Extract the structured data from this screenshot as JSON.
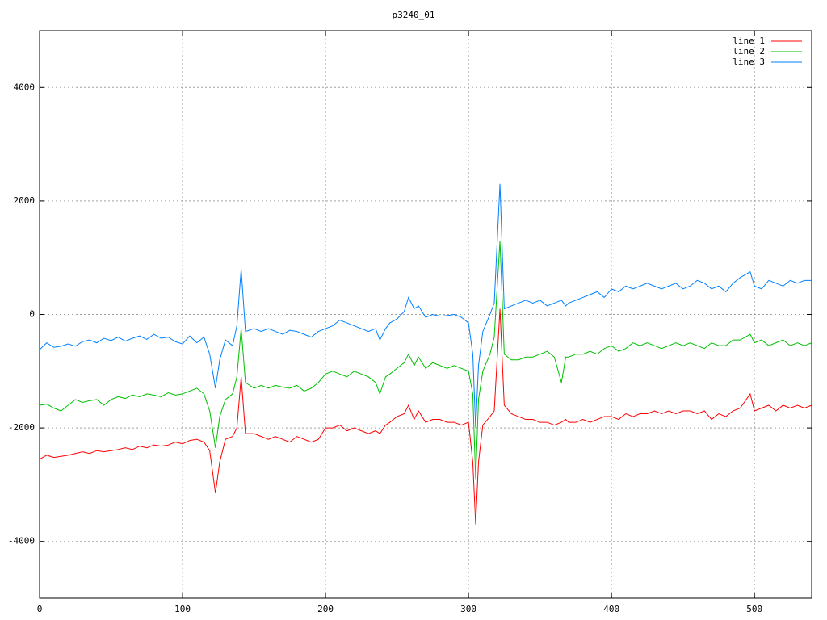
{
  "chart_data": {
    "type": "line",
    "title": "p3240_01",
    "x": [
      0,
      5,
      10,
      15,
      20,
      25,
      30,
      35,
      40,
      45,
      50,
      55,
      60,
      65,
      70,
      75,
      80,
      85,
      90,
      95,
      100,
      105,
      110,
      115,
      119,
      123,
      126,
      130,
      135,
      138,
      141,
      144,
      150,
      155,
      160,
      165,
      170,
      175,
      180,
      185,
      190,
      195,
      200,
      205,
      210,
      215,
      220,
      225,
      230,
      235,
      238,
      242,
      245,
      250,
      255,
      258,
      262,
      265,
      270,
      275,
      280,
      285,
      290,
      295,
      300,
      303,
      305,
      307,
      310,
      315,
      318,
      322,
      325,
      330,
      335,
      340,
      345,
      350,
      355,
      360,
      365,
      368,
      370,
      375,
      380,
      385,
      390,
      395,
      400,
      405,
      410,
      415,
      420,
      425,
      430,
      435,
      440,
      445,
      450,
      455,
      460,
      465,
      470,
      475,
      480,
      485,
      490,
      497,
      500,
      505,
      510,
      515,
      520,
      525,
      530,
      535,
      540
    ],
    "series": [
      {
        "name": "line 1",
        "color": "#ff0000",
        "values": [
          -2550,
          -2480,
          -2520,
          -2500,
          -2480,
          -2450,
          -2420,
          -2450,
          -2400,
          -2420,
          -2400,
          -2380,
          -2350,
          -2380,
          -2320,
          -2350,
          -2300,
          -2320,
          -2300,
          -2250,
          -2280,
          -2220,
          -2200,
          -2250,
          -2400,
          -3150,
          -2600,
          -2200,
          -2150,
          -2000,
          -1100,
          -2100,
          -2100,
          -2150,
          -2200,
          -2150,
          -2200,
          -2250,
          -2150,
          -2200,
          -2250,
          -2200,
          -2000,
          -2000,
          -1950,
          -2050,
          -2000,
          -2050,
          -2100,
          -2050,
          -2100,
          -1950,
          -1900,
          -1800,
          -1750,
          -1600,
          -1850,
          -1700,
          -1900,
          -1850,
          -1850,
          -1900,
          -1900,
          -1950,
          -1900,
          -2600,
          -3700,
          -2600,
          -1950,
          -1800,
          -1700,
          100,
          -1600,
          -1750,
          -1800,
          -1850,
          -1850,
          -1900,
          -1900,
          -1950,
          -1900,
          -1850,
          -1900,
          -1900,
          -1850,
          -1900,
          -1850,
          -1800,
          -1800,
          -1850,
          -1750,
          -1800,
          -1750,
          -1750,
          -1700,
          -1750,
          -1700,
          -1750,
          -1700,
          -1700,
          -1750,
          -1700,
          -1850,
          -1750,
          -1800,
          -1700,
          -1650,
          -1400,
          -1700,
          -1650,
          -1600,
          -1700,
          -1600,
          -1650,
          -1600,
          -1650,
          -1600
        ]
      },
      {
        "name": "line 2",
        "color": "#00c000",
        "values": [
          -1600,
          -1580,
          -1650,
          -1700,
          -1600,
          -1500,
          -1550,
          -1520,
          -1500,
          -1600,
          -1500,
          -1450,
          -1480,
          -1420,
          -1450,
          -1400,
          -1420,
          -1450,
          -1380,
          -1420,
          -1400,
          -1350,
          -1300,
          -1400,
          -1700,
          -2350,
          -1800,
          -1500,
          -1400,
          -1100,
          -250,
          -1200,
          -1300,
          -1250,
          -1300,
          -1250,
          -1280,
          -1300,
          -1250,
          -1350,
          -1300,
          -1200,
          -1050,
          -1000,
          -1050,
          -1100,
          -1000,
          -1050,
          -1100,
          -1200,
          -1400,
          -1100,
          -1050,
          -950,
          -850,
          -700,
          -900,
          -750,
          -950,
          -850,
          -900,
          -950,
          -900,
          -950,
          -1000,
          -1400,
          -2900,
          -1500,
          -1000,
          -700,
          -400,
          1300,
          -700,
          -800,
          -800,
          -750,
          -750,
          -700,
          -650,
          -750,
          -1200,
          -750,
          -750,
          -700,
          -700,
          -650,
          -700,
          -600,
          -550,
          -650,
          -600,
          -500,
          -550,
          -500,
          -550,
          -600,
          -550,
          -500,
          -550,
          -500,
          -550,
          -600,
          -500,
          -550,
          -550,
          -450,
          -450,
          -350,
          -500,
          -450,
          -550,
          -500,
          -450,
          -550,
          -500,
          -550,
          -500
        ]
      },
      {
        "name": "line 3",
        "color": "#0080ff",
        "values": [
          -620,
          -500,
          -580,
          -560,
          -520,
          -560,
          -480,
          -450,
          -500,
          -420,
          -460,
          -400,
          -470,
          -420,
          -380,
          -440,
          -350,
          -420,
          -400,
          -480,
          -520,
          -380,
          -500,
          -400,
          -700,
          -1300,
          -800,
          -450,
          -550,
          -200,
          800,
          -300,
          -250,
          -300,
          -250,
          -300,
          -350,
          -280,
          -300,
          -350,
          -400,
          -300,
          -250,
          -200,
          -100,
          -150,
          -200,
          -250,
          -300,
          -250,
          -450,
          -250,
          -150,
          -80,
          50,
          300,
          100,
          150,
          -50,
          0,
          -30,
          -20,
          0,
          -50,
          -150,
          -700,
          -2000,
          -900,
          -300,
          0,
          200,
          2300,
          100,
          150,
          200,
          250,
          200,
          250,
          150,
          200,
          250,
          150,
          200,
          250,
          300,
          350,
          400,
          300,
          450,
          400,
          500,
          450,
          500,
          550,
          500,
          450,
          500,
          550,
          450,
          500,
          600,
          550,
          450,
          500,
          400,
          550,
          650,
          750,
          500,
          450,
          600,
          550,
          500,
          600,
          550,
          600,
          600
        ]
      }
    ],
    "xlim": [
      0,
      540
    ],
    "xticks": [
      0,
      100,
      200,
      300,
      400,
      500
    ],
    "ylim": [
      -5000,
      5000
    ],
    "yticks": [
      -4000,
      -2000,
      0,
      2000,
      4000
    ],
    "grid": true,
    "legend": "top-right"
  }
}
